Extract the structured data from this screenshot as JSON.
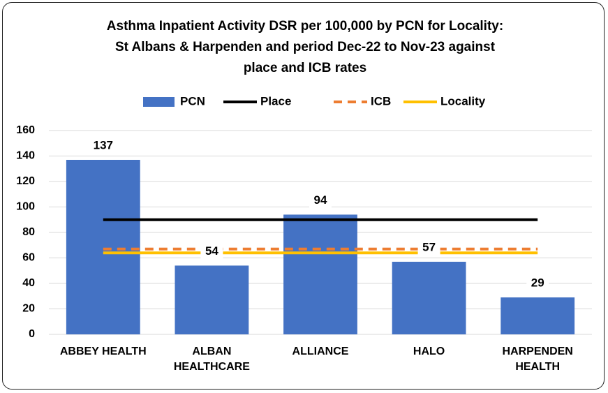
{
  "chart_data": {
    "type": "bar",
    "title": [
      "Asthma Inpatient Activity DSR per 100,000 by PCN for Locality:",
      "St Albans & Harpenden and period Dec-22 to Nov-23 against",
      "place and ICB rates"
    ],
    "categories": [
      "ABBEY HEALTH",
      "ALBAN HEALTHCARE",
      "ALLIANCE",
      "HALO",
      "HARPENDEN HEALTH"
    ],
    "series": [
      {
        "name": "PCN",
        "type": "bar",
        "color": "#4472c4",
        "values": [
          137,
          54,
          94,
          57,
          29
        ]
      },
      {
        "name": "Place",
        "type": "line",
        "color": "#000000",
        "values": [
          90,
          90,
          90,
          90,
          90
        ]
      },
      {
        "name": "ICB",
        "type": "line",
        "color": "#ed7d31",
        "dashed": true,
        "values": [
          67,
          67,
          67,
          67,
          67
        ]
      },
      {
        "name": "Locality",
        "type": "line",
        "color": "#ffc000",
        "values": [
          64,
          64,
          64,
          64,
          64
        ]
      }
    ],
    "ylim": [
      0,
      160
    ],
    "yticks": [
      0,
      20,
      40,
      60,
      80,
      100,
      120,
      140,
      160
    ],
    "grid": true,
    "legend": "top"
  }
}
